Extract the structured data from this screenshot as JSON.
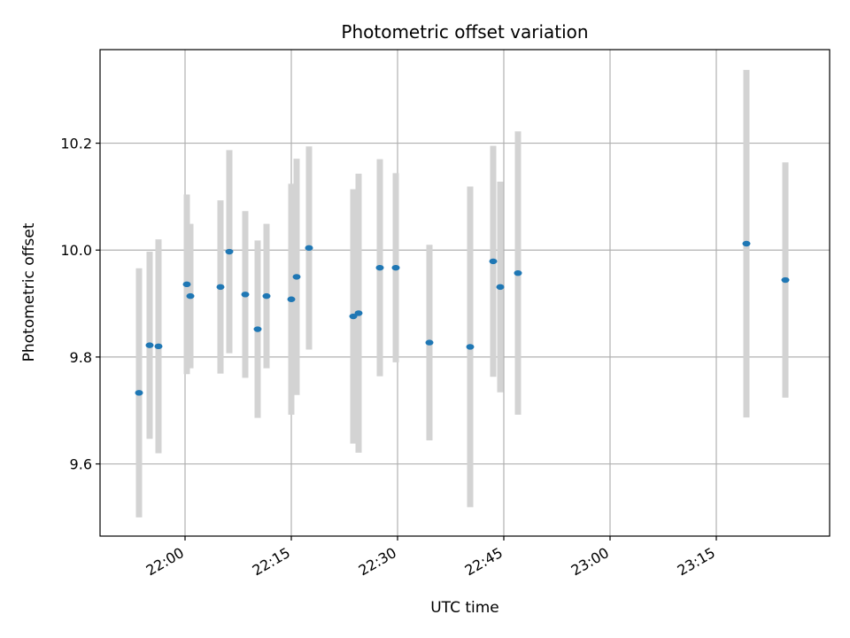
{
  "chart_data": {
    "type": "scatter",
    "title": "Photometric offset variation",
    "xlabel": "UTC time",
    "ylabel": "Photometric offset",
    "x_unit": "time of day (HH:MM, UTC)",
    "xlim": [
      "21:48",
      "23:31"
    ],
    "ylim": [
      9.465,
      10.375
    ],
    "grid": true,
    "x_ticks": [
      "22:00",
      "22:15",
      "22:30",
      "22:45",
      "23:00",
      "23:15"
    ],
    "y_ticks": [
      "9.6",
      "9.8",
      "10.0",
      "10.2"
    ],
    "point_color": "#1f77b4",
    "errorbar_color": "#d3d3d3",
    "series": [
      {
        "points": [
          {
            "t": "21:53:30",
            "y": 9.733,
            "err": 0.233
          },
          {
            "t": "21:55:00",
            "y": 9.822,
            "err": 0.175
          },
          {
            "t": "21:56:15",
            "y": 9.82,
            "err": 0.2
          },
          {
            "t": "22:00:15",
            "y": 9.936,
            "err": 0.168
          },
          {
            "t": "22:00:45",
            "y": 9.914,
            "err": 0.135
          },
          {
            "t": "22:05:00",
            "y": 9.931,
            "err": 0.162
          },
          {
            "t": "22:06:15",
            "y": 9.997,
            "err": 0.19
          },
          {
            "t": "22:08:30",
            "y": 9.917,
            "err": 0.156
          },
          {
            "t": "22:10:15",
            "y": 9.852,
            "err": 0.166
          },
          {
            "t": "22:11:30",
            "y": 9.914,
            "err": 0.135
          },
          {
            "t": "22:15:00",
            "y": 9.908,
            "err": 0.216
          },
          {
            "t": "22:15:45",
            "y": 9.95,
            "err": 0.221
          },
          {
            "t": "22:17:30",
            "y": 10.004,
            "err": 0.19
          },
          {
            "t": "22:23:45",
            "y": 9.876,
            "err": 0.238
          },
          {
            "t": "22:24:30",
            "y": 9.882,
            "err": 0.261
          },
          {
            "t": "22:27:30",
            "y": 9.967,
            "err": 0.203
          },
          {
            "t": "22:29:45",
            "y": 9.967,
            "err": 0.177
          },
          {
            "t": "22:34:30",
            "y": 9.827,
            "err": 0.183
          },
          {
            "t": "22:40:15",
            "y": 9.819,
            "err": 0.3
          },
          {
            "t": "22:43:30",
            "y": 9.979,
            "err": 0.216
          },
          {
            "t": "22:44:30",
            "y": 9.931,
            "err": 0.197
          },
          {
            "t": "22:47:00",
            "y": 9.957,
            "err": 0.265
          },
          {
            "t": "23:19:15",
            "y": 10.012,
            "err": 0.325
          },
          {
            "t": "23:24:45",
            "y": 9.944,
            "err": 0.22
          }
        ]
      }
    ]
  }
}
